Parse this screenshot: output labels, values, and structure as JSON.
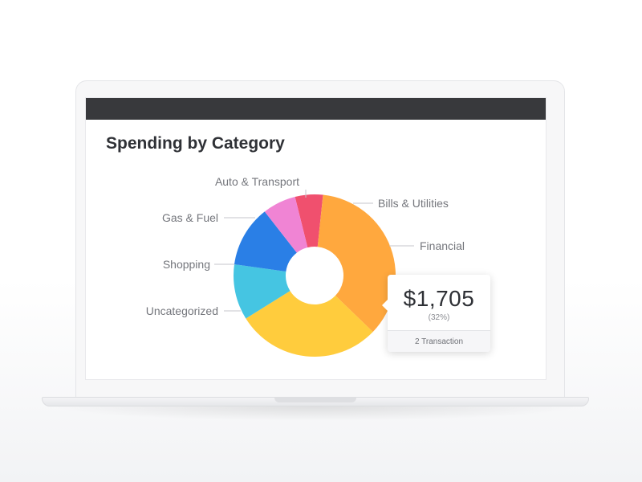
{
  "chart_data": {
    "type": "pie",
    "title": "Spending by Category",
    "categories": [
      "Bills & Utilities",
      "Financial",
      "Uncategorized",
      "Shopping",
      "Gas & Fuel",
      "Auto & Transport"
    ],
    "values": [
      5,
      32,
      26,
      10,
      11,
      6
    ],
    "colors": [
      "#f0506e",
      "#ffa83e",
      "#ffcc3d",
      "#45c5e2",
      "#2a7fe6",
      "#f084d4"
    ],
    "donut": true
  },
  "tooltip": {
    "amount": "$1,705",
    "percent": "(32%)",
    "transactions": "2 Transaction"
  }
}
